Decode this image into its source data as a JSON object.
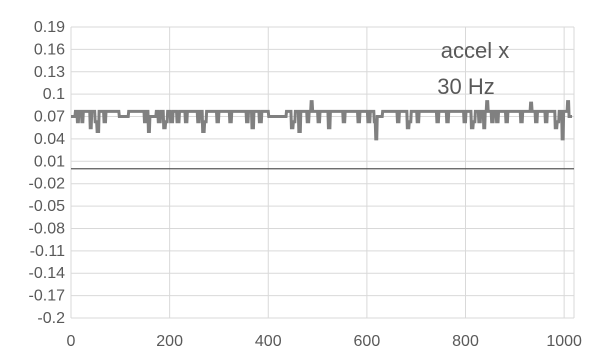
{
  "chart_data": {
    "type": "line",
    "title": "",
    "xlabel": "",
    "ylabel": "",
    "xlim": [
      0,
      1020
    ],
    "ylim": [
      -0.2,
      0.19
    ],
    "x_ticks": [
      0,
      200,
      400,
      600,
      800,
      1000
    ],
    "y_ticks": [
      0.19,
      0.16,
      0.13,
      0.1,
      0.07,
      0.04,
      0.01,
      -0.02,
      -0.05,
      -0.08,
      -0.11,
      -0.14,
      -0.17,
      -0.2
    ],
    "x_tick_labels": [
      "0",
      "200",
      "400",
      "600",
      "800",
      "1000"
    ],
    "y_tick_labels": [
      "0.19",
      "0.16",
      "0.13",
      "0.1",
      "0.07",
      "0.04",
      "0.01",
      "-0.02",
      "-0.05",
      "-0.08",
      "-0.11",
      "-0.14",
      "-0.17",
      "-0.2"
    ],
    "grid": true,
    "zero_line": 0,
    "annotation_lines": [
      "accel x",
      "30 Hz"
    ],
    "colors": {
      "series": "#808080",
      "grid": "#d9d9d9",
      "zero_line": "#595959",
      "text": "#595959"
    },
    "series": [
      {
        "values": [
          [
            0,
            0.07
          ],
          [
            8,
            0.07
          ],
          [
            9,
            0.077
          ],
          [
            12,
            0.077
          ],
          [
            13,
            0.063
          ],
          [
            15,
            0.063
          ],
          [
            16,
            0.077
          ],
          [
            21,
            0.077
          ],
          [
            22,
            0.063
          ],
          [
            24,
            0.063
          ],
          [
            25,
            0.077
          ],
          [
            38,
            0.077
          ],
          [
            39,
            0.055
          ],
          [
            41,
            0.055
          ],
          [
            42,
            0.077
          ],
          [
            48,
            0.077
          ],
          [
            49,
            0.063
          ],
          [
            52,
            0.063
          ],
          [
            53,
            0.05
          ],
          [
            56,
            0.05
          ],
          [
            57,
            0.077
          ],
          [
            66,
            0.077
          ],
          [
            67,
            0.063
          ],
          [
            70,
            0.063
          ],
          [
            71,
            0.077
          ],
          [
            97,
            0.077
          ],
          [
            98,
            0.07
          ],
          [
            116,
            0.07
          ],
          [
            117,
            0.077
          ],
          [
            148,
            0.077
          ],
          [
            149,
            0.063
          ],
          [
            152,
            0.063
          ],
          [
            153,
            0.077
          ],
          [
            156,
            0.077
          ],
          [
            157,
            0.05
          ],
          [
            159,
            0.05
          ],
          [
            160,
            0.07
          ],
          [
            172,
            0.07
          ],
          [
            173,
            0.077
          ],
          [
            176,
            0.077
          ],
          [
            177,
            0.063
          ],
          [
            181,
            0.063
          ],
          [
            182,
            0.077
          ],
          [
            187,
            0.077
          ],
          [
            188,
            0.055
          ],
          [
            191,
            0.055
          ],
          [
            192,
            0.063
          ],
          [
            195,
            0.063
          ],
          [
            196,
            0.077
          ],
          [
            201,
            0.077
          ],
          [
            202,
            0.063
          ],
          [
            206,
            0.063
          ],
          [
            207,
            0.077
          ],
          [
            214,
            0.077
          ],
          [
            215,
            0.063
          ],
          [
            219,
            0.063
          ],
          [
            220,
            0.077
          ],
          [
            231,
            0.077
          ],
          [
            232,
            0.063
          ],
          [
            235,
            0.063
          ],
          [
            236,
            0.077
          ],
          [
            256,
            0.077
          ],
          [
            257,
            0.063
          ],
          [
            260,
            0.063
          ],
          [
            261,
            0.077
          ],
          [
            266,
            0.077
          ],
          [
            267,
            0.05
          ],
          [
            270,
            0.05
          ],
          [
            271,
            0.063
          ],
          [
            274,
            0.063
          ],
          [
            275,
            0.077
          ],
          [
            295,
            0.077
          ],
          [
            296,
            0.063
          ],
          [
            299,
            0.063
          ],
          [
            300,
            0.077
          ],
          [
            321,
            0.077
          ],
          [
            322,
            0.063
          ],
          [
            325,
            0.063
          ],
          [
            326,
            0.077
          ],
          [
            355,
            0.077
          ],
          [
            356,
            0.063
          ],
          [
            359,
            0.063
          ],
          [
            360,
            0.077
          ],
          [
            366,
            0.077
          ],
          [
            367,
            0.055
          ],
          [
            370,
            0.055
          ],
          [
            371,
            0.077
          ],
          [
            381,
            0.077
          ],
          [
            382,
            0.063
          ],
          [
            386,
            0.063
          ],
          [
            387,
            0.077
          ],
          [
            400,
            0.077
          ],
          [
            401,
            0.07
          ],
          [
            436,
            0.07
          ],
          [
            437,
            0.077
          ],
          [
            446,
            0.077
          ],
          [
            447,
            0.055
          ],
          [
            450,
            0.055
          ],
          [
            451,
            0.063
          ],
          [
            454,
            0.063
          ],
          [
            455,
            0.077
          ],
          [
            461,
            0.077
          ],
          [
            462,
            0.05
          ],
          [
            465,
            0.05
          ],
          [
            466,
            0.077
          ],
          [
            478,
            0.077
          ],
          [
            479,
            0.063
          ],
          [
            482,
            0.063
          ],
          [
            483,
            0.077
          ],
          [
            486,
            0.077
          ],
          [
            487,
            0.09
          ],
          [
            489,
            0.09
          ],
          [
            490,
            0.077
          ],
          [
            500,
            0.077
          ],
          [
            501,
            0.063
          ],
          [
            504,
            0.063
          ],
          [
            505,
            0.077
          ],
          [
            521,
            0.077
          ],
          [
            522,
            0.055
          ],
          [
            525,
            0.055
          ],
          [
            526,
            0.077
          ],
          [
            551,
            0.077
          ],
          [
            552,
            0.063
          ],
          [
            555,
            0.063
          ],
          [
            556,
            0.077
          ],
          [
            581,
            0.077
          ],
          [
            582,
            0.063
          ],
          [
            585,
            0.063
          ],
          [
            586,
            0.077
          ],
          [
            601,
            0.077
          ],
          [
            602,
            0.063
          ],
          [
            606,
            0.063
          ],
          [
            607,
            0.077
          ],
          [
            614,
            0.077
          ],
          [
            615,
            0.063
          ],
          [
            617,
            0.063
          ],
          [
            618,
            0.04
          ],
          [
            620,
            0.04
          ],
          [
            621,
            0.07
          ],
          [
            631,
            0.07
          ],
          [
            632,
            0.077
          ],
          [
            661,
            0.077
          ],
          [
            662,
            0.063
          ],
          [
            665,
            0.063
          ],
          [
            666,
            0.077
          ],
          [
            681,
            0.077
          ],
          [
            682,
            0.055
          ],
          [
            685,
            0.055
          ],
          [
            686,
            0.063
          ],
          [
            689,
            0.063
          ],
          [
            690,
            0.077
          ],
          [
            701,
            0.077
          ],
          [
            702,
            0.063
          ],
          [
            705,
            0.063
          ],
          [
            706,
            0.077
          ],
          [
            741,
            0.077
          ],
          [
            742,
            0.063
          ],
          [
            745,
            0.063
          ],
          [
            746,
            0.077
          ],
          [
            761,
            0.077
          ],
          [
            762,
            0.063
          ],
          [
            765,
            0.063
          ],
          [
            766,
            0.077
          ],
          [
            796,
            0.077
          ],
          [
            797,
            0.063
          ],
          [
            800,
            0.063
          ],
          [
            801,
            0.077
          ],
          [
            811,
            0.077
          ],
          [
            812,
            0.055
          ],
          [
            815,
            0.055
          ],
          [
            816,
            0.063
          ],
          [
            819,
            0.063
          ],
          [
            820,
            0.077
          ],
          [
            826,
            0.077
          ],
          [
            827,
            0.063
          ],
          [
            830,
            0.063
          ],
          [
            831,
            0.077
          ],
          [
            836,
            0.077
          ],
          [
            837,
            0.055
          ],
          [
            839,
            0.055
          ],
          [
            840,
            0.077
          ],
          [
            842,
            0.077
          ],
          [
            843,
            0.09
          ],
          [
            845,
            0.09
          ],
          [
            846,
            0.077
          ],
          [
            852,
            0.077
          ],
          [
            853,
            0.063
          ],
          [
            856,
            0.063
          ],
          [
            857,
            0.077
          ],
          [
            862,
            0.077
          ],
          [
            863,
            0.063
          ],
          [
            866,
            0.063
          ],
          [
            867,
            0.077
          ],
          [
            881,
            0.077
          ],
          [
            882,
            0.063
          ],
          [
            885,
            0.063
          ],
          [
            886,
            0.077
          ],
          [
            911,
            0.077
          ],
          [
            912,
            0.063
          ],
          [
            915,
            0.063
          ],
          [
            916,
            0.077
          ],
          [
            931,
            0.077
          ],
          [
            932,
            0.088
          ],
          [
            934,
            0.088
          ],
          [
            935,
            0.077
          ],
          [
            941,
            0.077
          ],
          [
            942,
            0.063
          ],
          [
            945,
            0.063
          ],
          [
            946,
            0.077
          ],
          [
            961,
            0.077
          ],
          [
            962,
            0.063
          ],
          [
            965,
            0.063
          ],
          [
            966,
            0.077
          ],
          [
            981,
            0.077
          ],
          [
            982,
            0.055
          ],
          [
            985,
            0.055
          ],
          [
            986,
            0.063
          ],
          [
            989,
            0.063
          ],
          [
            990,
            0.077
          ],
          [
            995,
            0.077
          ],
          [
            996,
            0.04
          ],
          [
            998,
            0.04
          ],
          [
            999,
            0.077
          ],
          [
            1006,
            0.077
          ],
          [
            1007,
            0.09
          ],
          [
            1009,
            0.09
          ],
          [
            1010,
            0.07
          ],
          [
            1016,
            0.07
          ]
        ]
      }
    ]
  }
}
